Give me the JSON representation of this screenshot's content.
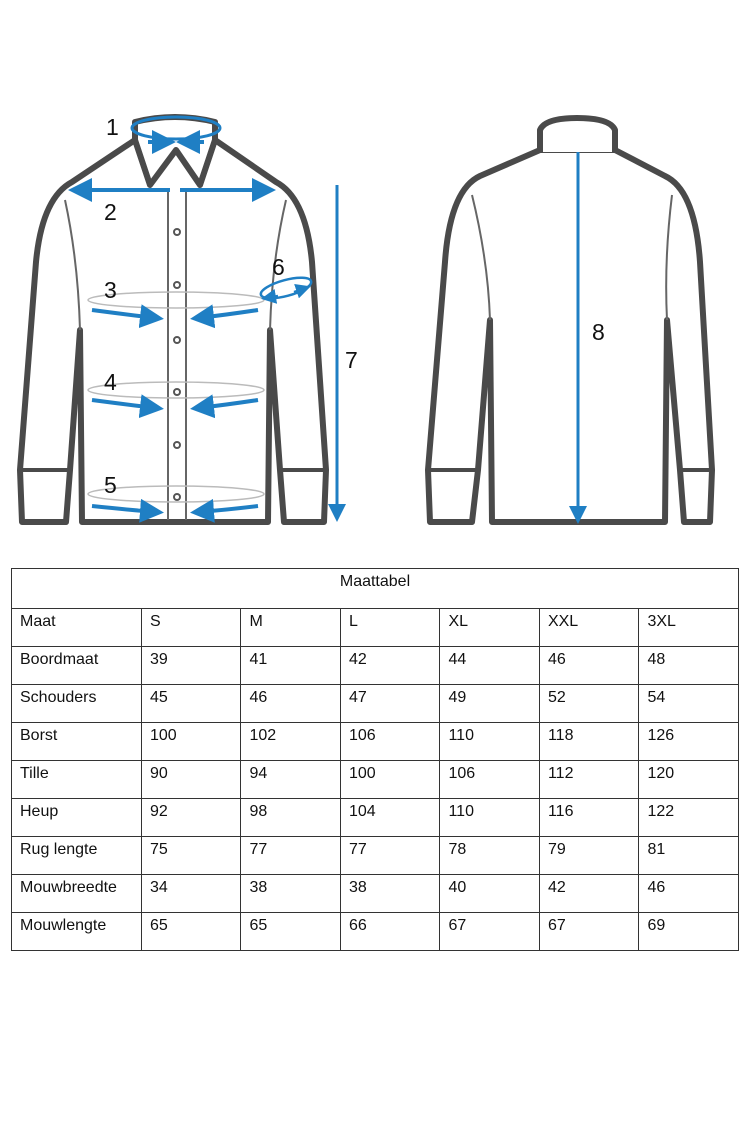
{
  "illustration": {
    "labels": [
      "1",
      "2",
      "3",
      "4",
      "5",
      "6",
      "7",
      "8"
    ],
    "accent_color": "#1f7fc4",
    "outline_color": "#4a4a4a"
  },
  "table": {
    "title": "Maattabel",
    "header": [
      "Maat",
      "S",
      "M",
      "L",
      "XL",
      "XXL",
      "3XL"
    ],
    "rows": [
      [
        "Boordmaat",
        "39",
        "41",
        "42",
        "44",
        "46",
        "48"
      ],
      [
        "Schouders",
        "45",
        "46",
        "47",
        "49",
        "52",
        "54"
      ],
      [
        "Borst",
        "100",
        "102",
        "106",
        "110",
        "118",
        "126"
      ],
      [
        "Tille",
        "90",
        "94",
        "100",
        "106",
        "112",
        "120"
      ],
      [
        "Heup",
        "92",
        "98",
        "104",
        "110",
        "116",
        "122"
      ],
      [
        "Rug lengte",
        "75",
        "77",
        "77",
        "78",
        "79",
        "81"
      ],
      [
        "Mouwbreedte",
        "34",
        "38",
        "38",
        "40",
        "42",
        "46"
      ],
      [
        "Mouwlengte",
        "65",
        "65",
        "66",
        "67",
        "67",
        "69"
      ]
    ]
  }
}
